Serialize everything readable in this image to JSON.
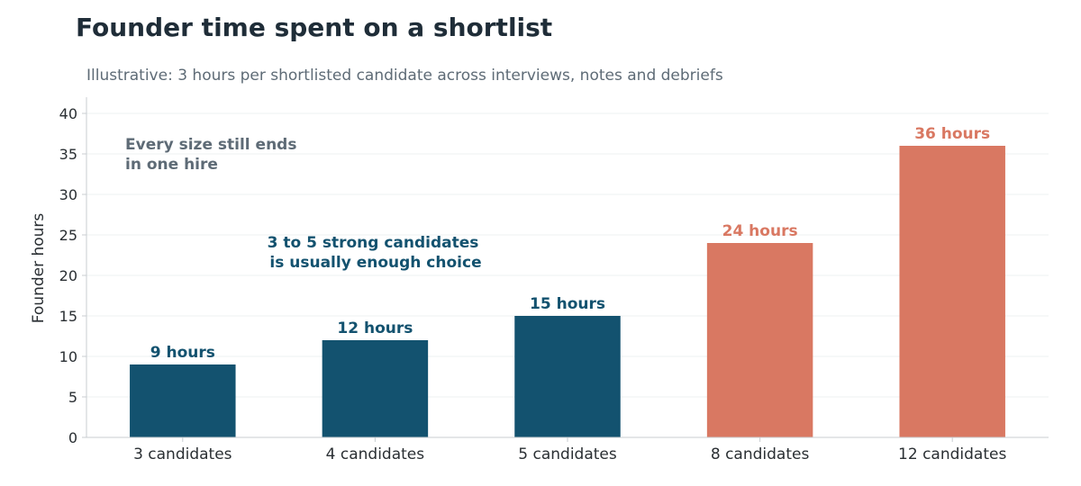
{
  "chart_data": {
    "type": "bar",
    "title": "Founder time spent on a shortlist",
    "subtitle": "Illustrative: 3 hours per shortlisted candidate across interviews, notes and debriefs",
    "xlabel": "",
    "ylabel": "Founder hours",
    "ylim": [
      0,
      40
    ],
    "yticks": [
      0,
      5,
      10,
      15,
      20,
      25,
      30,
      35,
      40
    ],
    "grid": true,
    "categories": [
      "3 candidates",
      "4 candidates",
      "5 candidates",
      "8 candidates",
      "12 candidates"
    ],
    "values": [
      9,
      12,
      15,
      24,
      36
    ],
    "data_labels": [
      "9 hours",
      "12 hours",
      "15 hours",
      "24 hours",
      "36 hours"
    ],
    "bar_colors": [
      "#13526f",
      "#13526f",
      "#13526f",
      "#d97862",
      "#d97862"
    ],
    "annotations": [
      {
        "lines": [
          "Every size still ends",
          "in one hire"
        ],
        "color": "#5e6b76"
      },
      {
        "lines": [
          "3 to 5 strong candidates",
          "is usually enough choice"
        ],
        "color": "#13526f"
      }
    ]
  }
}
